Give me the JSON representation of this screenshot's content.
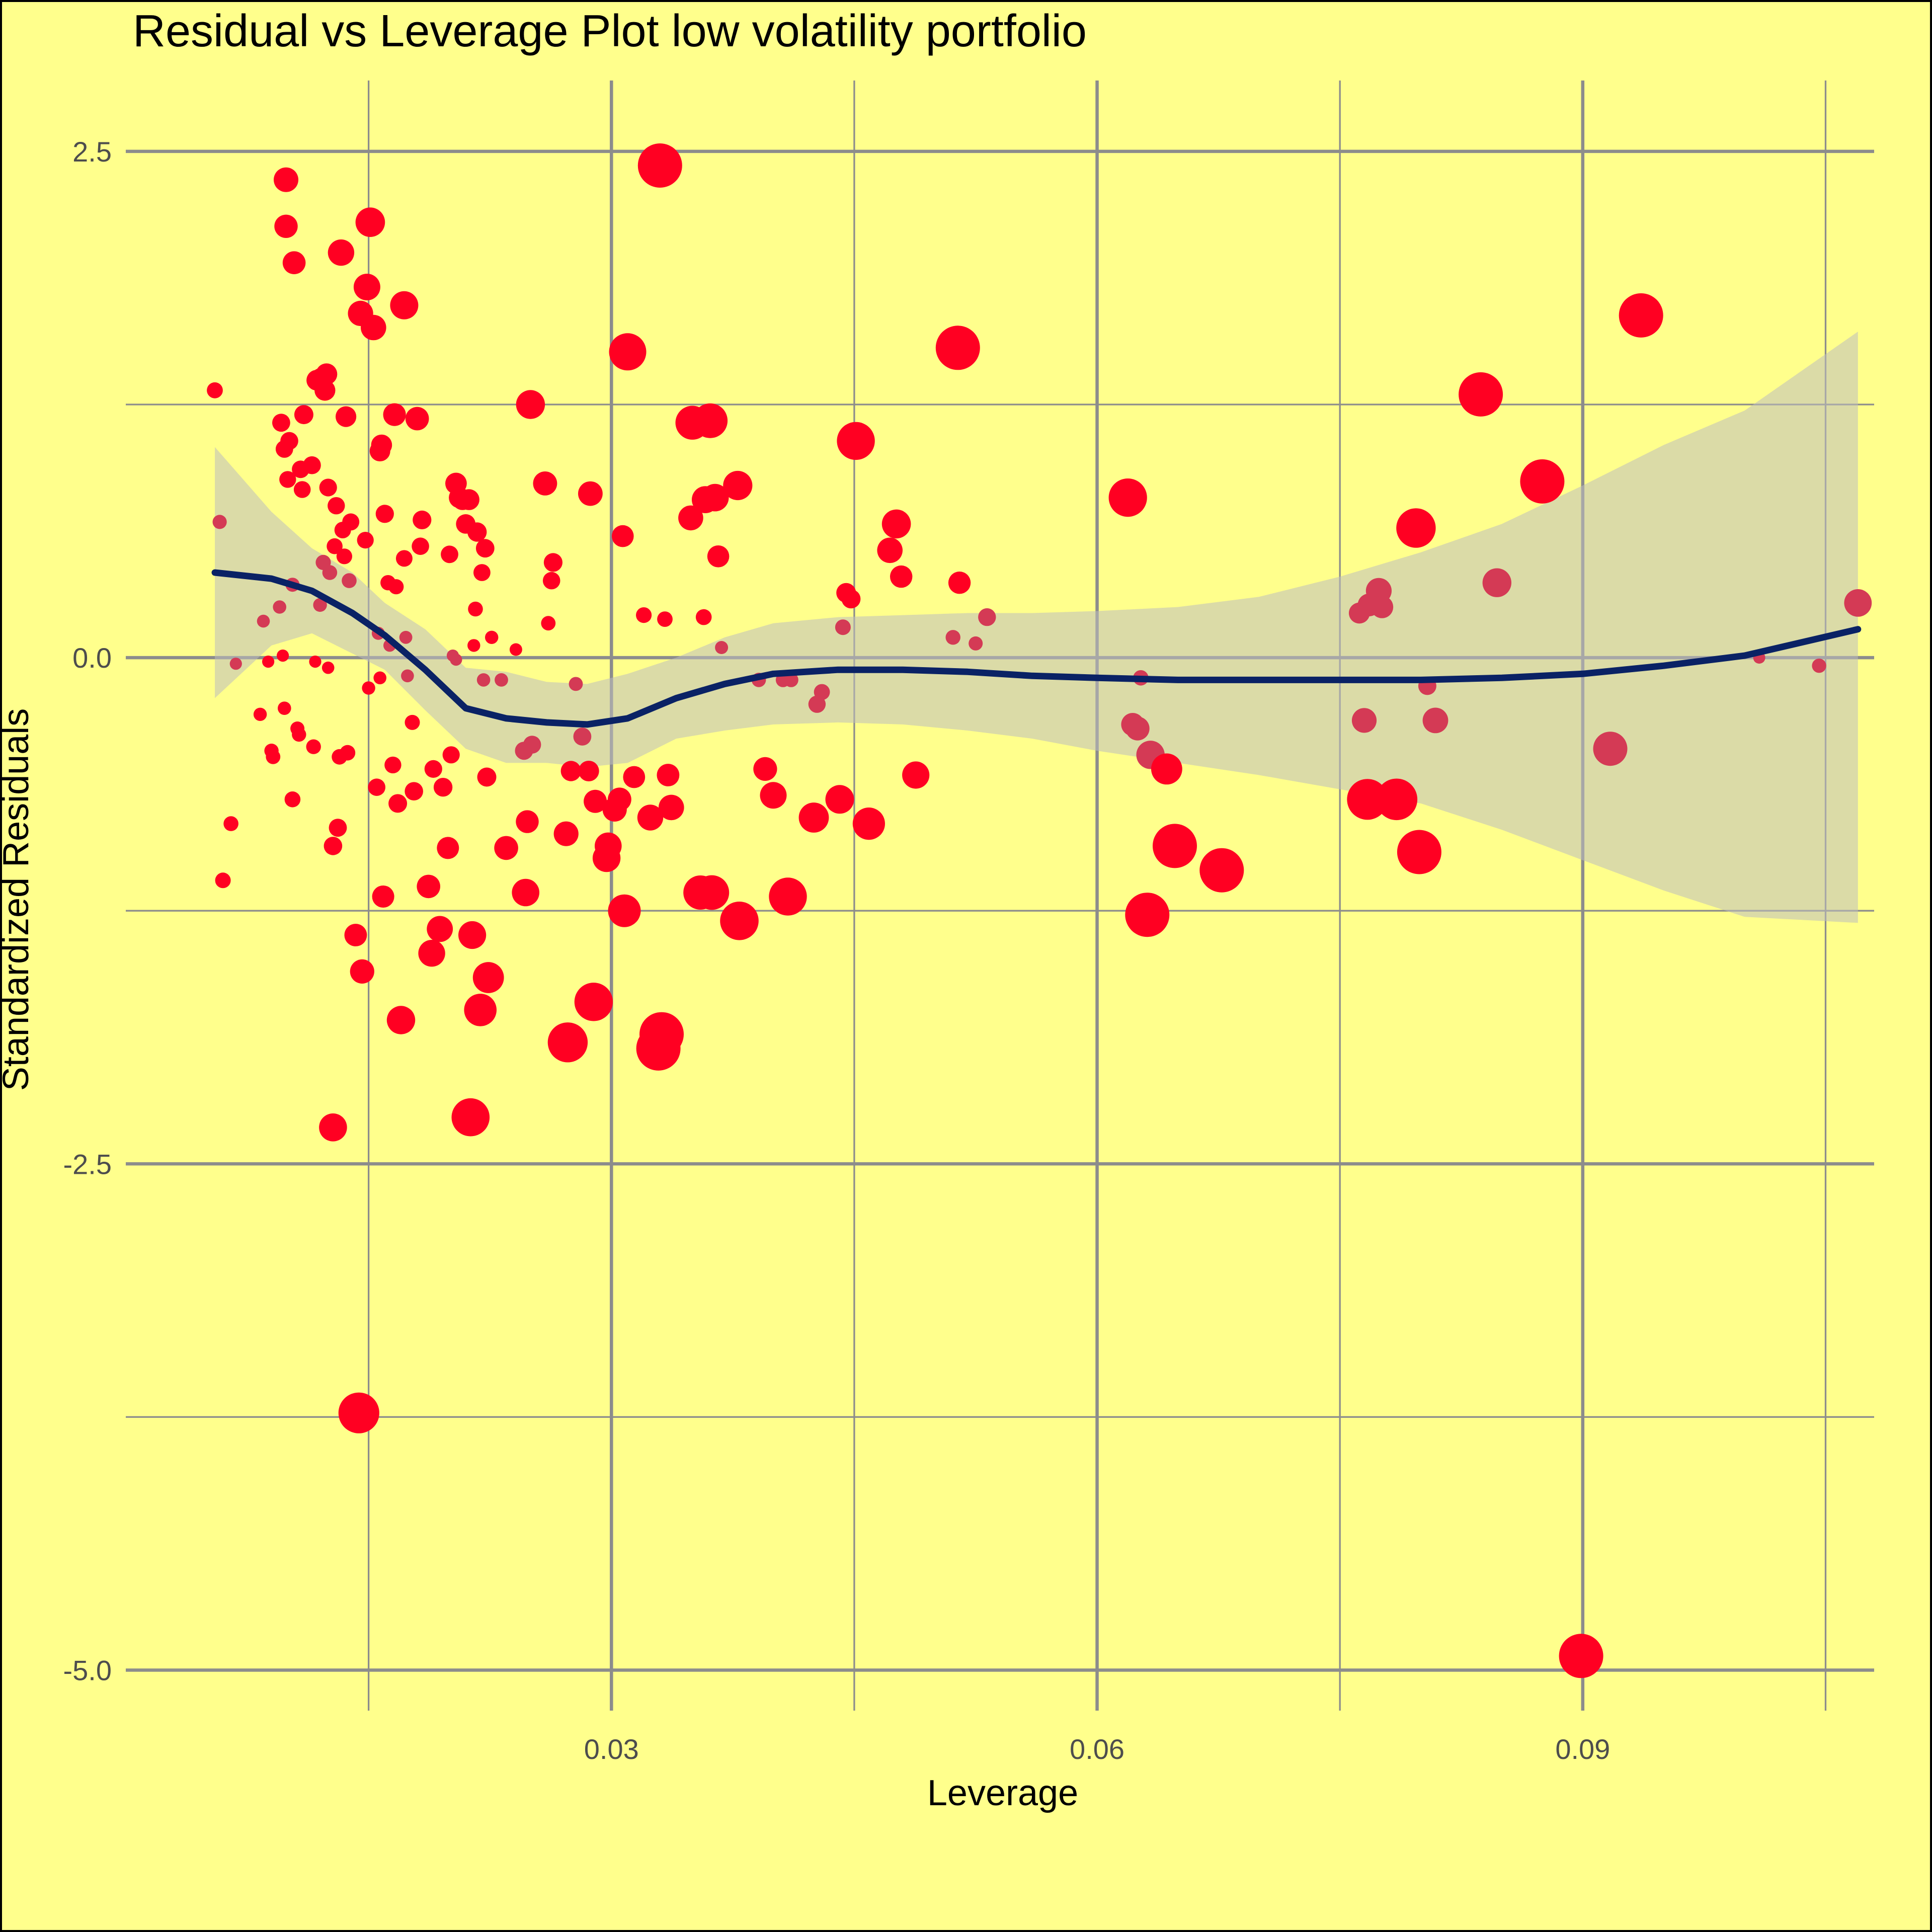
{
  "colors": {
    "background": "#ffff8c",
    "point": "#ff0022",
    "point_in_band": "#d43a55",
    "smooth_line": "#0a2265",
    "ribbon": "#bebebe",
    "grid": "#8c8c8c"
  },
  "chart_data": {
    "type": "scatter",
    "title": "Residual vs Leverage Plot low volatility portfolio",
    "xlabel": "Leverage",
    "ylabel": "Standardized Residuals",
    "xlim": [
      0.0,
      0.108
    ],
    "ylim": [
      -5.2,
      2.85
    ],
    "x_ticks": [
      0.03,
      0.06,
      0.09
    ],
    "x_tick_labels": [
      "0.03",
      "0.06",
      "0.09"
    ],
    "x_minor_ticks": [
      0.015,
      0.045,
      0.075,
      0.105
    ],
    "y_ticks": [
      2.5,
      0.0,
      -2.5,
      -5.0
    ],
    "y_tick_labels": [
      "2.5",
      "0.0",
      "-2.5",
      "-5.0"
    ],
    "y_minor_ticks": [
      1.25,
      -1.25,
      -3.75
    ],
    "grid": true,
    "legend": "none",
    "point_size": "cooks_distance",
    "points": [
      [
        0.0055,
        1.32
      ],
      [
        0.0058,
        0.67
      ],
      [
        0.006,
        -1.1
      ],
      [
        0.0065,
        -0.82
      ],
      [
        0.0068,
        -0.03
      ],
      [
        0.0083,
        -0.28
      ],
      [
        0.0085,
        0.18
      ],
      [
        0.0088,
        -0.02
      ],
      [
        0.009,
        -0.46
      ],
      [
        0.0091,
        -0.49
      ],
      [
        0.0095,
        0.25
      ],
      [
        0.0096,
        1.16
      ],
      [
        0.0097,
        0.01
      ],
      [
        0.0098,
        -0.25
      ],
      [
        0.0098,
        1.03
      ],
      [
        0.0099,
        2.13
      ],
      [
        0.0099,
        2.36
      ],
      [
        0.01,
        0.88
      ],
      [
        0.0101,
        1.07
      ],
      [
        0.0103,
        -0.7
      ],
      [
        0.0103,
        0.36
      ],
      [
        0.0104,
        1.95
      ],
      [
        0.0106,
        -0.35
      ],
      [
        0.0107,
        -0.38
      ],
      [
        0.0108,
        0.93
      ],
      [
        0.0109,
        0.83
      ],
      [
        0.011,
        1.2
      ],
      [
        0.0115,
        0.95
      ],
      [
        0.0116,
        -0.44
      ],
      [
        0.0117,
        -0.02
      ],
      [
        0.0118,
        1.37
      ],
      [
        0.012,
        0.26
      ],
      [
        0.0121,
        1.38
      ],
      [
        0.0122,
        0.47
      ],
      [
        0.0123,
        1.32
      ],
      [
        0.0124,
        1.4
      ],
      [
        0.0125,
        -0.05
      ],
      [
        0.0125,
        0.84
      ],
      [
        0.0126,
        0.42
      ],
      [
        0.0128,
        -0.93
      ],
      [
        0.0128,
        -2.32
      ],
      [
        0.0129,
        0.55
      ],
      [
        0.013,
        0.75
      ],
      [
        0.0131,
        -0.84
      ],
      [
        0.0132,
        -0.49
      ],
      [
        0.0133,
        2.0
      ],
      [
        0.0134,
        0.63
      ],
      [
        0.0135,
        0.5
      ],
      [
        0.0136,
        1.19
      ],
      [
        0.0137,
        -0.47
      ],
      [
        0.0138,
        0.38
      ],
      [
        0.0139,
        0.67
      ],
      [
        0.0142,
        -1.37
      ],
      [
        0.0144,
        -3.73
      ],
      [
        0.0145,
        1.7
      ],
      [
        0.0146,
        -1.55
      ],
      [
        0.0148,
        0.58
      ],
      [
        0.0149,
        1.83
      ],
      [
        0.015,
        -0.15
      ],
      [
        0.0151,
        2.15
      ],
      [
        0.0153,
        1.63
      ],
      [
        0.0155,
        -0.64
      ],
      [
        0.0156,
        0.12
      ],
      [
        0.0157,
        1.02
      ],
      [
        0.0157,
        -0.1
      ],
      [
        0.0158,
        1.05
      ],
      [
        0.0159,
        -1.18
      ],
      [
        0.016,
        0.71
      ],
      [
        0.0162,
        0.37
      ],
      [
        0.0163,
        0.06
      ],
      [
        0.0165,
        -0.53
      ],
      [
        0.0166,
        1.2
      ],
      [
        0.0167,
        0.35
      ],
      [
        0.0168,
        -0.72
      ],
      [
        0.017,
        -1.79
      ],
      [
        0.0172,
        1.74
      ],
      [
        0.0172,
        0.49
      ],
      [
        0.0173,
        0.1
      ],
      [
        0.0174,
        -0.09
      ],
      [
        0.0177,
        -0.32
      ],
      [
        0.0178,
        -0.66
      ],
      [
        0.018,
        1.18
      ],
      [
        0.0182,
        0.55
      ],
      [
        0.0183,
        0.68
      ],
      [
        0.0187,
        -1.13
      ],
      [
        0.0189,
        -1.46
      ],
      [
        0.019,
        -0.55
      ],
      [
        0.0194,
        -1.34
      ],
      [
        0.0196,
        -0.64
      ],
      [
        0.0199,
        -0.94
      ],
      [
        0.02,
        0.51
      ],
      [
        0.0201,
        -0.48
      ],
      [
        0.0202,
        0.01
      ],
      [
        0.0204,
        -0.01
      ],
      [
        0.0204,
        0.86
      ],
      [
        0.0206,
        0.79
      ],
      [
        0.0208,
        0.78
      ],
      [
        0.021,
        0.66
      ],
      [
        0.0212,
        0.78
      ],
      [
        0.0213,
        -2.27
      ],
      [
        0.0214,
        -1.37
      ],
      [
        0.0215,
        0.06
      ],
      [
        0.0216,
        0.24
      ],
      [
        0.0217,
        0.62
      ],
      [
        0.0219,
        -1.74
      ],
      [
        0.022,
        0.42
      ],
      [
        0.0221,
        -0.11
      ],
      [
        0.0222,
        0.54
      ],
      [
        0.0223,
        -0.59
      ],
      [
        0.0224,
        -1.58
      ],
      [
        0.0226,
        0.1
      ],
      [
        0.0232,
        -0.11
      ],
      [
        0.0235,
        -0.94
      ],
      [
        0.0241,
        0.04
      ],
      [
        0.0246,
        -0.46
      ],
      [
        0.0247,
        -1.16
      ],
      [
        0.0248,
        -0.81
      ],
      [
        0.025,
        1.25
      ],
      [
        0.0251,
        -0.43
      ],
      [
        0.0259,
        0.86
      ],
      [
        0.0261,
        0.17
      ],
      [
        0.0263,
        0.38
      ],
      [
        0.0264,
        0.47
      ],
      [
        0.0272,
        -0.87
      ],
      [
        0.0273,
        -1.9
      ],
      [
        0.0275,
        -0.56
      ],
      [
        0.0278,
        -0.13
      ],
      [
        0.0282,
        -0.39
      ],
      [
        0.0286,
        -0.56
      ],
      [
        0.0287,
        0.81
      ],
      [
        0.0289,
        -1.7
      ],
      [
        0.029,
        -0.71
      ],
      [
        0.0297,
        -0.99
      ],
      [
        0.0298,
        -0.93
      ],
      [
        0.0302,
        -0.75
      ],
      [
        0.0305,
        -0.7
      ],
      [
        0.0307,
        0.6
      ],
      [
        0.0308,
        -1.25
      ],
      [
        0.031,
        1.51
      ],
      [
        0.0314,
        -0.59
      ],
      [
        0.032,
        0.21
      ],
      [
        0.0324,
        -0.79
      ],
      [
        0.0329,
        -1.93
      ],
      [
        0.033,
        2.43
      ],
      [
        0.0331,
        -1.86
      ],
      [
        0.0333,
        0.19
      ],
      [
        0.0335,
        -0.58
      ],
      [
        0.0337,
        -0.74
      ],
      [
        0.0349,
        0.69
      ],
      [
        0.035,
        1.16
      ],
      [
        0.0355,
        -1.16
      ],
      [
        0.0357,
        0.2
      ],
      [
        0.0358,
        0.78
      ],
      [
        0.0361,
        1.17
      ],
      [
        0.0362,
        -1.16
      ],
      [
        0.0364,
        0.79
      ],
      [
        0.0366,
        0.5
      ],
      [
        0.0368,
        0.05
      ],
      [
        0.0378,
        0.85
      ],
      [
        0.0379,
        -1.3
      ],
      [
        0.0391,
        -0.11
      ],
      [
        0.0395,
        -0.55
      ],
      [
        0.04,
        -0.68
      ],
      [
        0.0406,
        -0.11
      ],
      [
        0.0409,
        -1.18
      ],
      [
        0.0411,
        -0.11
      ],
      [
        0.0425,
        -0.79
      ],
      [
        0.0427,
        -0.23
      ],
      [
        0.043,
        -0.17
      ],
      [
        0.0441,
        -0.7
      ],
      [
        0.0443,
        0.15
      ],
      [
        0.0445,
        0.32
      ],
      [
        0.0448,
        0.29
      ],
      [
        0.0451,
        1.07
      ],
      [
        0.0459,
        -0.82
      ],
      [
        0.0472,
        0.53
      ],
      [
        0.0476,
        0.66
      ],
      [
        0.0479,
        0.4
      ],
      [
        0.0488,
        -0.58
      ],
      [
        0.0511,
        0.1
      ],
      [
        0.0514,
        1.53
      ],
      [
        0.0515,
        0.37
      ],
      [
        0.0525,
        0.07
      ],
      [
        0.0532,
        0.2
      ],
      [
        0.0619,
        0.79
      ],
      [
        0.0622,
        -0.33
      ],
      [
        0.0625,
        -0.35
      ],
      [
        0.0627,
        -0.1
      ],
      [
        0.0631,
        -1.27
      ],
      [
        0.0633,
        -0.48
      ],
      [
        0.0643,
        -0.55
      ],
      [
        0.0648,
        -0.93
      ],
      [
        0.0677,
        -1.05
      ],
      [
        0.0762,
        0.22
      ],
      [
        0.0765,
        -0.31
      ],
      [
        0.0767,
        -0.7
      ],
      [
        0.0768,
        0.26
      ],
      [
        0.0774,
        0.33
      ],
      [
        0.0776,
        0.25
      ],
      [
        0.0785,
        -0.7
      ],
      [
        0.0797,
        0.64
      ],
      [
        0.0799,
        -0.96
      ],
      [
        0.0804,
        -0.14
      ],
      [
        0.0809,
        -0.31
      ],
      [
        0.0837,
        1.3
      ],
      [
        0.0847,
        0.37
      ],
      [
        0.0875,
        0.87
      ],
      [
        0.0917,
        -0.45
      ],
      [
        0.0936,
        1.69
      ],
      [
        0.0899,
        -4.93
      ],
      [
        0.1009,
        0.0
      ],
      [
        0.1046,
        -0.04
      ],
      [
        0.107,
        0.27
      ]
    ],
    "smooth": {
      "method": "loess",
      "x": [
        0.0055,
        0.009,
        0.0115,
        0.014,
        0.016,
        0.0185,
        0.021,
        0.0235,
        0.026,
        0.0285,
        0.031,
        0.034,
        0.037,
        0.04,
        0.044,
        0.048,
        0.052,
        0.056,
        0.06,
        0.065,
        0.07,
        0.075,
        0.08,
        0.085,
        0.09,
        0.095,
        0.1,
        0.107
      ],
      "y": [
        0.42,
        0.39,
        0.33,
        0.22,
        0.11,
        -0.06,
        -0.25,
        -0.3,
        -0.32,
        -0.33,
        -0.3,
        -0.2,
        -0.13,
        -0.08,
        -0.06,
        -0.06,
        -0.07,
        -0.09,
        -0.1,
        -0.11,
        -0.11,
        -0.11,
        -0.11,
        -0.1,
        -0.08,
        -0.04,
        0.01,
        0.14
      ],
      "ymin": [
        -0.2,
        0.06,
        0.12,
        0.02,
        -0.06,
        -0.26,
        -0.45,
        -0.52,
        -0.52,
        -0.54,
        -0.52,
        -0.4,
        -0.36,
        -0.33,
        -0.32,
        -0.33,
        -0.36,
        -0.4,
        -0.46,
        -0.52,
        -0.58,
        -0.65,
        -0.72,
        -0.85,
        -1.0,
        -1.15,
        -1.28,
        -1.31
      ],
      "ymax": [
        1.04,
        0.72,
        0.54,
        0.42,
        0.27,
        0.14,
        -0.05,
        -0.07,
        -0.12,
        -0.13,
        -0.08,
        0.0,
        0.1,
        0.17,
        0.2,
        0.21,
        0.22,
        0.22,
        0.23,
        0.25,
        0.3,
        0.4,
        0.52,
        0.66,
        0.85,
        1.05,
        1.22,
        1.61
      ]
    }
  }
}
